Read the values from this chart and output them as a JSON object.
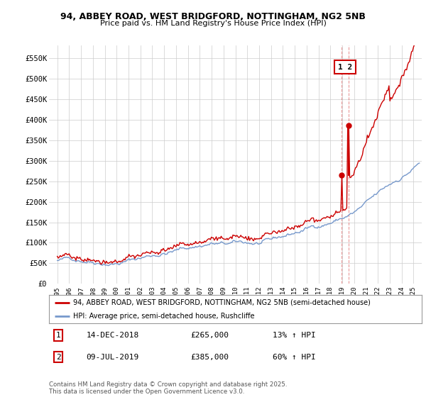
{
  "title1": "94, ABBEY ROAD, WEST BRIDGFORD, NOTTINGHAM, NG2 5NB",
  "title2": "Price paid vs. HM Land Registry's House Price Index (HPI)",
  "legend_label1": "94, ABBEY ROAD, WEST BRIDGFORD, NOTTINGHAM, NG2 5NB (semi-detached house)",
  "legend_label2": "HPI: Average price, semi-detached house, Rushcliffe",
  "line1_color": "#cc0000",
  "line2_color": "#7799cc",
  "annotation1_date": "14-DEC-2018",
  "annotation1_price": "£265,000",
  "annotation1_change": "13% ↑ HPI",
  "annotation2_date": "09-JUL-2019",
  "annotation2_price": "£385,000",
  "annotation2_change": "60% ↑ HPI",
  "footer": "Contains HM Land Registry data © Crown copyright and database right 2025.\nThis data is licensed under the Open Government Licence v3.0.",
  "ylim_min": 0,
  "ylim_max": 580000,
  "yticks": [
    0,
    50000,
    100000,
    150000,
    200000,
    250000,
    300000,
    350000,
    400000,
    450000,
    500000,
    550000
  ],
  "ytick_labels": [
    "£0",
    "£50K",
    "£100K",
    "£150K",
    "£200K",
    "£250K",
    "£300K",
    "£350K",
    "£400K",
    "£450K",
    "£500K",
    "£550K"
  ],
  "background_color": "#ffffff",
  "grid_color": "#cccccc",
  "sale1_year": 2018.96,
  "sale1_y": 265000,
  "sale2_year": 2019.52,
  "sale2_y": 385000,
  "xlim_min": 1994.3,
  "xlim_max": 2025.7
}
